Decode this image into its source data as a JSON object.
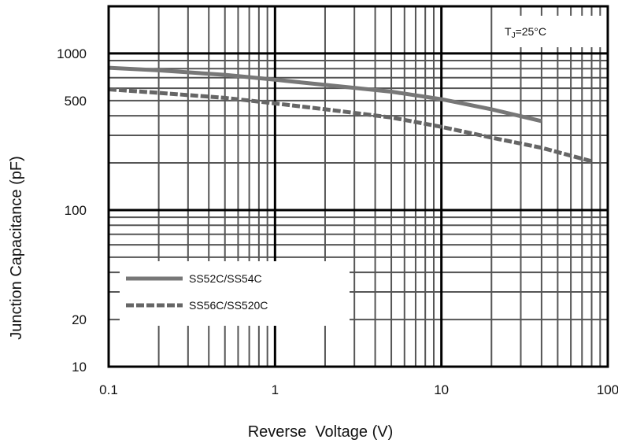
{
  "chart_data": {
    "type": "line",
    "xscale": "log",
    "yscale": "log",
    "xlim": [
      0.1,
      100
    ],
    "ylim": [
      10,
      2000
    ],
    "xlabel": "Reverse  Voltage (V)",
    "ylabel": "Junction Capacitance (pF)",
    "x_ticks": [
      0.1,
      1,
      10,
      100
    ],
    "x_tick_labels": [
      "0.1",
      "1",
      "10",
      "100"
    ],
    "y_ticks": [
      10,
      20,
      100,
      500,
      1000
    ],
    "y_tick_labels": [
      "10",
      "20",
      "100",
      "500",
      "1000"
    ],
    "grid": true,
    "annotation": {
      "prefix": "T",
      "sub": "J",
      "suffix": "=25°C"
    },
    "legend_position": "lower-left",
    "series": [
      {
        "name": "SS52C/SS54C",
        "style": "solid",
        "color": "#777777",
        "x": [
          0.1,
          0.2,
          0.5,
          1,
          2,
          5,
          10,
          20,
          40
        ],
        "y": [
          810,
          780,
          730,
          680,
          630,
          570,
          510,
          440,
          370
        ]
      },
      {
        "name": "SS56C/SS520C",
        "style": "dashed",
        "color": "#666666",
        "x": [
          0.1,
          0.2,
          0.5,
          1,
          2,
          5,
          10,
          20,
          40,
          80
        ],
        "y": [
          590,
          560,
          520,
          480,
          440,
          390,
          340,
          290,
          250,
          205
        ]
      }
    ]
  }
}
